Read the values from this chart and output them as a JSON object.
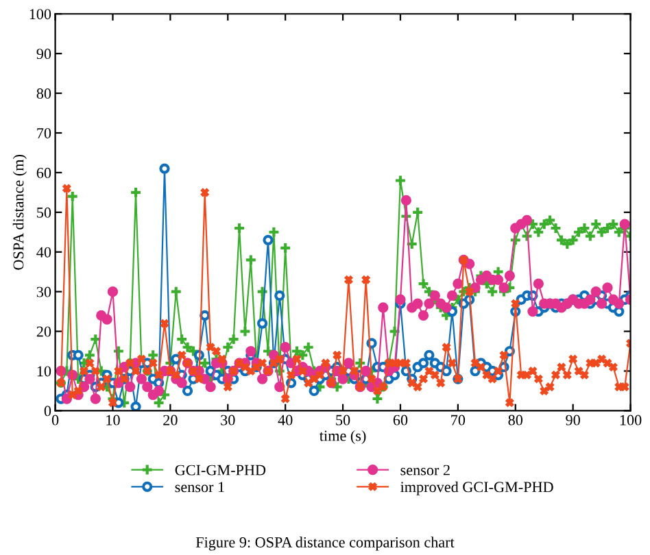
{
  "chart_data": {
    "type": "line",
    "xlabel": "time (s)",
    "ylabel": "OSPA distance (m)",
    "x": [
      1,
      2,
      3,
      4,
      5,
      6,
      7,
      8,
      9,
      10,
      11,
      12,
      13,
      14,
      15,
      16,
      17,
      18,
      19,
      20,
      21,
      22,
      23,
      24,
      25,
      26,
      27,
      28,
      29,
      30,
      31,
      32,
      33,
      34,
      35,
      36,
      37,
      38,
      39,
      40,
      41,
      42,
      43,
      44,
      45,
      46,
      47,
      48,
      49,
      50,
      51,
      52,
      53,
      54,
      55,
      56,
      57,
      58,
      59,
      60,
      61,
      62,
      63,
      64,
      65,
      66,
      67,
      68,
      69,
      70,
      71,
      72,
      73,
      74,
      75,
      76,
      77,
      78,
      79,
      80,
      81,
      82,
      83,
      84,
      85,
      86,
      87,
      88,
      89,
      90,
      91,
      92,
      93,
      94,
      95,
      96,
      97,
      98,
      99,
      100
    ],
    "series": [
      {
        "name": "GCI-GM-PHD",
        "color": "#3cae2e",
        "marker": "cross",
        "values": [
          7,
          10,
          54,
          8,
          12,
          14,
          18,
          10,
          6,
          3,
          15,
          2,
          12,
          55,
          12,
          10,
          14,
          2,
          4,
          12,
          30,
          18,
          16,
          15,
          10,
          12,
          8,
          13,
          10,
          16,
          18,
          46,
          20,
          38,
          12,
          30,
          15,
          45,
          10,
          41,
          12,
          15,
          14,
          16,
          10,
          6,
          9,
          8,
          6,
          10,
          8,
          9,
          12,
          7,
          10,
          3,
          6,
          12,
          20,
          58,
          49,
          42,
          50,
          32,
          30,
          28,
          26,
          24,
          26,
          28,
          30,
          31,
          30,
          34,
          32,
          30,
          35,
          30,
          31,
          43,
          47,
          44,
          47,
          45,
          47,
          48,
          46,
          43,
          42,
          43,
          45,
          46,
          44,
          47,
          45,
          46,
          47,
          45,
          46,
          44
        ]
      },
      {
        "name": "sensor 1",
        "color": "#0f6fba",
        "marker": "circle",
        "values": [
          3,
          4,
          14,
          14,
          8,
          9,
          6,
          7,
          9,
          7,
          2,
          8,
          10,
          1,
          12,
          12,
          8,
          7,
          61,
          10,
          13,
          9,
          5,
          8,
          14,
          24,
          10,
          9,
          8,
          10,
          8,
          11,
          10,
          14,
          11,
          22,
          43,
          12,
          29,
          13,
          7,
          10,
          9,
          8,
          5,
          8,
          9,
          10,
          11,
          9,
          10,
          8,
          9,
          8,
          17,
          11,
          11,
          8,
          9,
          27,
          10,
          8,
          11,
          12,
          14,
          12,
          11,
          10,
          25,
          8,
          27,
          28,
          10,
          12,
          11,
          10,
          9,
          11,
          15,
          25,
          28,
          29,
          29,
          25,
          26,
          27,
          26,
          27,
          27,
          28,
          28,
          29,
          27,
          28,
          29,
          27,
          26,
          25,
          28,
          29
        ]
      },
      {
        "name": "sensor 2",
        "color": "#e2348f",
        "marker": "circle",
        "values": [
          10,
          3,
          9,
          4,
          6,
          8,
          3,
          24,
          23,
          30,
          7,
          11,
          6,
          12,
          8,
          6,
          4,
          5,
          10,
          10,
          8,
          7,
          12,
          10,
          10,
          8,
          6,
          12,
          12,
          8,
          10,
          12,
          12,
          15,
          12,
          8,
          10,
          14,
          6,
          16,
          12,
          10,
          11,
          10,
          9,
          10,
          11,
          7,
          10,
          8,
          12,
          9,
          6,
          10,
          6,
          7,
          26,
          10,
          11,
          28,
          53,
          26,
          27,
          24,
          27,
          29,
          27,
          26,
          29,
          32,
          38,
          37,
          31,
          33,
          34,
          33,
          33,
          31,
          34,
          46,
          47,
          48,
          25,
          32,
          27,
          27,
          27,
          26,
          27,
          28,
          27,
          27,
          28,
          30,
          27,
          31,
          28,
          27,
          47,
          28
        ]
      },
      {
        "name": "improved GCI-GM-PHD",
        "color": "#ef4a1f",
        "marker": "cross",
        "values": [
          7,
          56,
          4,
          5,
          10,
          12,
          10,
          6,
          8,
          2,
          10,
          8,
          12,
          10,
          13,
          10,
          12,
          9,
          22,
          10,
          9,
          14,
          12,
          10,
          8,
          55,
          16,
          15,
          13,
          6,
          10,
          12,
          11,
          10,
          11,
          12,
          10,
          12,
          13,
          3,
          9,
          13,
          10,
          7,
          8,
          9,
          12,
          7,
          14,
          10,
          33,
          10,
          6,
          33,
          8,
          5,
          6,
          12,
          12,
          12,
          12,
          7,
          6,
          8,
          10,
          9,
          7,
          16,
          12,
          8,
          38,
          30,
          12,
          11,
          9,
          8,
          10,
          14,
          2,
          27,
          9,
          9,
          10,
          8,
          5,
          6,
          9,
          11,
          9,
          13,
          10,
          9,
          12,
          12,
          13,
          12,
          11,
          6,
          6,
          17
        ]
      }
    ],
    "xlim": [
      0,
      100
    ],
    "xticks": [
      0,
      10,
      20,
      30,
      40,
      50,
      60,
      70,
      80,
      90,
      100
    ],
    "ylim": [
      0,
      100
    ],
    "yticks": [
      0,
      10,
      20,
      30,
      40,
      50,
      60,
      70,
      80,
      90,
      100
    ],
    "grid": false,
    "legend": "bottom",
    "line_style": "solid",
    "annotations": [
      "Figure 9: OSPA distance comparison chart"
    ]
  }
}
